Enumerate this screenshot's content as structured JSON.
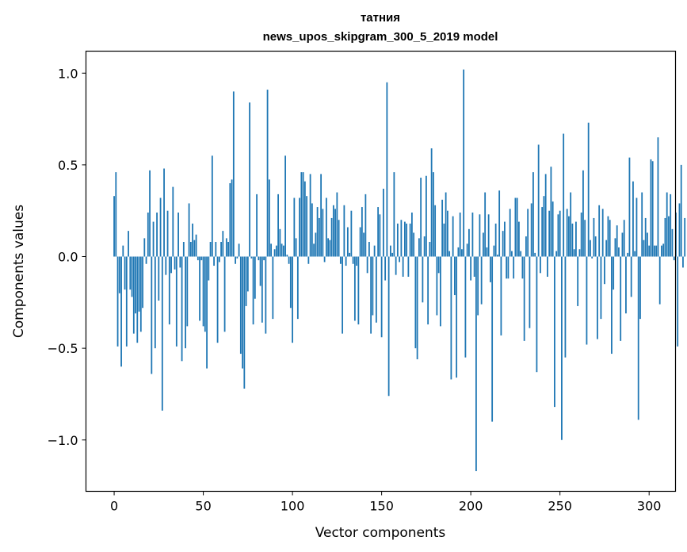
{
  "chart_data": {
    "type": "bar",
    "title_line1": "татния",
    "title_line2": "news_upos_skipgram_300_5_2019 model",
    "xlabel": "Vector components",
    "ylabel": "Components values",
    "xlim": [
      -15.8,
      314.8
    ],
    "ylim": [
      -1.28,
      1.12
    ],
    "xticks": [
      0,
      50,
      100,
      150,
      200,
      250,
      300
    ],
    "xtick_labels": [
      "0",
      "50",
      "100",
      "150",
      "200",
      "250",
      "300"
    ],
    "yticks": [
      -1.0,
      -0.5,
      0.0,
      0.5,
      1.0
    ],
    "ytick_labels": [
      "−1.0",
      "−0.5",
      "0.0",
      "0.5",
      "1.0"
    ],
    "bar_color": "#1f77b4",
    "values": [
      0.33,
      0.46,
      -0.49,
      -0.2,
      -0.6,
      0.06,
      -0.18,
      -0.49,
      0.14,
      -0.18,
      -0.22,
      -0.42,
      -0.31,
      -0.47,
      -0.3,
      -0.41,
      -0.28,
      0.1,
      -0.04,
      0.24,
      0.47,
      -0.64,
      0.19,
      -0.5,
      0.24,
      -0.24,
      0.32,
      -0.84,
      0.48,
      -0.1,
      0.25,
      -0.37,
      -0.09,
      0.38,
      -0.07,
      -0.49,
      0.24,
      -0.06,
      -0.57,
      0.08,
      -0.5,
      -0.38,
      0.29,
      0.08,
      0.18,
      0.09,
      0.12,
      -0.02,
      -0.35,
      -0.02,
      -0.38,
      -0.41,
      -0.61,
      -0.13,
      0.08,
      0.55,
      -0.05,
      0.08,
      -0.47,
      -0.03,
      0.08,
      0.14,
      -0.41,
      0.1,
      0.08,
      0.4,
      0.42,
      0.9,
      -0.04,
      -0.01,
      0.07,
      -0.53,
      -0.61,
      -0.72,
      -0.27,
      -0.19,
      0.84,
      -0.01,
      -0.37,
      -0.23,
      0.34,
      -0.02,
      -0.16,
      -0.36,
      -0.02,
      -0.42,
      0.91,
      0.42,
      0.07,
      -0.34,
      0.04,
      0.06,
      0.34,
      0.15,
      0.07,
      0.06,
      0.55,
      0.01,
      -0.04,
      -0.28,
      -0.47,
      0.32,
      0.1,
      -0.34,
      0.32,
      0.46,
      0.46,
      0.41,
      0.33,
      -0.04,
      0.45,
      0.29,
      0.07,
      0.13,
      0.27,
      0.21,
      0.45,
      0.26,
      -0.03,
      0.32,
      0.1,
      0.09,
      0.21,
      0.28,
      0.26,
      0.35,
      0.2,
      -0.04,
      -0.42,
      0.28,
      -0.05,
      0.16,
      0.02,
      0.25,
      -0.04,
      -0.35,
      -0.05,
      -0.37,
      0.16,
      0.27,
      0.13,
      0.34,
      -0.09,
      0.08,
      -0.42,
      -0.32,
      0.06,
      -0.36,
      0.27,
      0.23,
      -0.44,
      0.37,
      -0.13,
      0.95,
      -0.76,
      0.06,
      0.02,
      0.46,
      -0.1,
      0.18,
      -0.03,
      0.2,
      -0.11,
      0.19,
      0.18,
      -0.11,
      0.18,
      0.24,
      0.13,
      -0.5,
      -0.56,
      0.1,
      0.43,
      -0.25,
      0.11,
      0.44,
      -0.37,
      0.08,
      0.59,
      0.46,
      0.28,
      -0.32,
      -0.09,
      -0.38,
      0.31,
      0.18,
      0.35,
      0.25,
      0.03,
      -0.67,
      0.22,
      -0.21,
      -0.66,
      0.05,
      0.24,
      0.04,
      1.02,
      -0.55,
      0.07,
      0.15,
      -0.13,
      0.24,
      -0.11,
      -1.17,
      -0.32,
      0.23,
      -0.26,
      0.13,
      0.35,
      0.05,
      0.23,
      -0.14,
      -0.9,
      0.06,
      0.18,
      0.01,
      0.36,
      -0.43,
      0.14,
      0.19,
      -0.12,
      -0.12,
      0.26,
      0.03,
      -0.12,
      0.32,
      0.32,
      0.19,
      0.03,
      -0.12,
      -0.46,
      0.11,
      0.26,
      -0.39,
      0.29,
      0.46,
      0.02,
      -0.63,
      0.61,
      -0.09,
      0.27,
      0.33,
      0.45,
      -0.11,
      0.25,
      0.49,
      0.3,
      -0.82,
      0.03,
      0.23,
      0.25,
      -1.0,
      0.67,
      -0.55,
      0.26,
      0.22,
      0.35,
      0.18,
      0.04,
      0.19,
      -0.27,
      0.04,
      0.24,
      0.47,
      0.2,
      -0.48,
      0.73,
      0.09,
      -0.01,
      0.21,
      0.11,
      -0.45,
      0.28,
      -0.34,
      0.26,
      -0.15,
      0.09,
      0.22,
      0.2,
      -0.53,
      -0.18,
      0.1,
      0.17,
      0.05,
      -0.46,
      0.13,
      0.2,
      -0.31,
      0.02,
      0.54,
      -0.22,
      0.41,
      0.03,
      0.32,
      -0.89,
      -0.34,
      0.35,
      0.09,
      0.21,
      0.13,
      0.06,
      0.53,
      0.52,
      0.06,
      0.06,
      0.65,
      -0.26,
      0.06,
      0.07,
      0.21,
      0.35,
      0.22,
      0.34,
      0.15,
      -0.02,
      0.24,
      -0.49,
      0.29,
      0.5,
      -0.06,
      0.21
    ]
  }
}
